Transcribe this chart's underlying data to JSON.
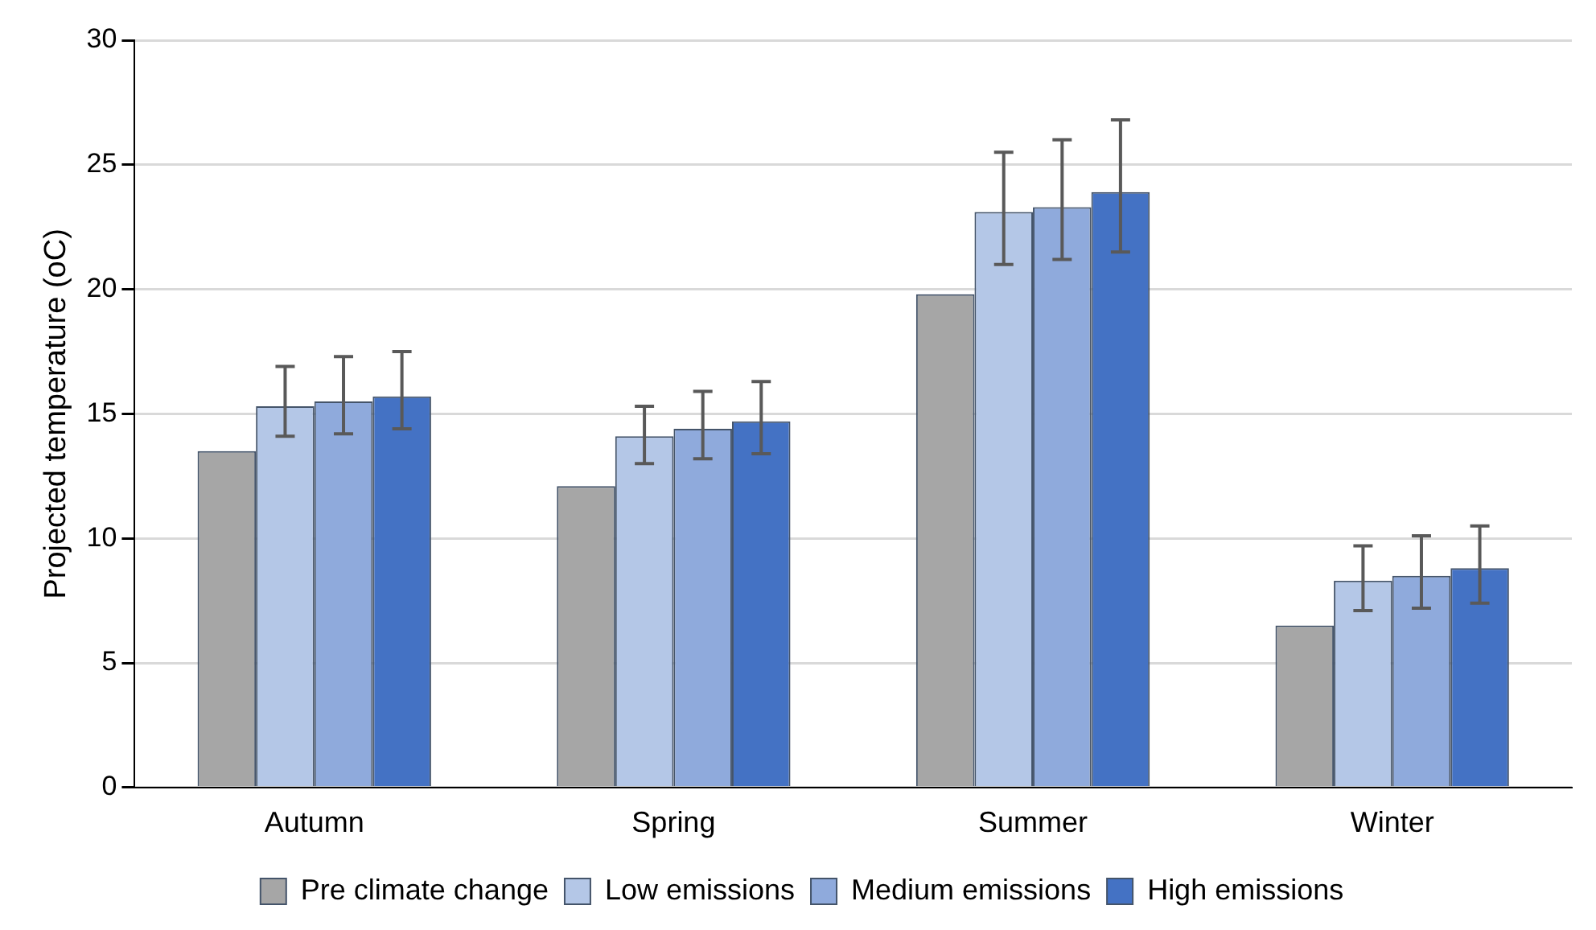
{
  "chart_data": {
    "type": "bar",
    "ylabel": "Projected temperature (oC)",
    "categories": [
      "Autumn",
      "Spring",
      "Summer",
      "Winter"
    ],
    "series": [
      {
        "name": "Pre climate change",
        "color": "#a6a6a6",
        "values": [
          13.5,
          12.1,
          19.8,
          6.5
        ]
      },
      {
        "name": "Low emissions",
        "color": "#b4c7e7",
        "values": [
          15.3,
          14.1,
          23.1,
          8.3
        ],
        "errors": [
          [
            14.1,
            16.9
          ],
          [
            13.0,
            15.3
          ],
          [
            21.0,
            25.5
          ],
          [
            7.1,
            9.7
          ]
        ]
      },
      {
        "name": "Medium emissions",
        "color": "#8faadc",
        "values": [
          15.5,
          14.4,
          23.3,
          8.5
        ],
        "errors": [
          [
            14.2,
            17.3
          ],
          [
            13.2,
            15.9
          ],
          [
            21.2,
            26.0
          ],
          [
            7.2,
            10.1
          ]
        ]
      },
      {
        "name": "High emissions",
        "color": "#4472c4",
        "values": [
          15.7,
          14.7,
          23.9,
          8.8
        ],
        "errors": [
          [
            14.4,
            17.5
          ],
          [
            13.4,
            16.3
          ],
          [
            21.5,
            26.8
          ],
          [
            7.4,
            10.5
          ]
        ]
      }
    ],
    "ylim": [
      0,
      30
    ],
    "yticks": [
      0,
      5,
      10,
      15,
      20,
      25,
      30
    ],
    "grid": "y",
    "legend": "bottom"
  }
}
